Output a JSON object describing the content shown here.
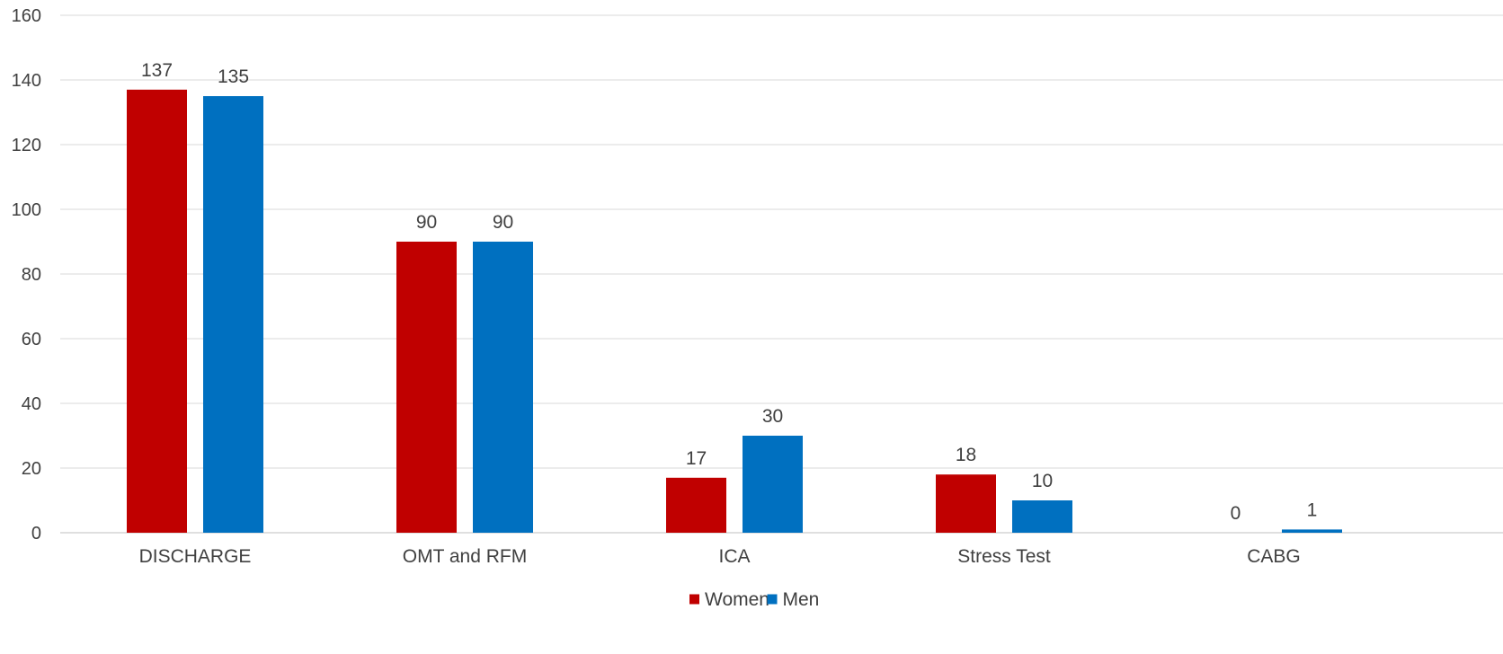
{
  "chart_data": {
    "type": "bar",
    "title": "",
    "xlabel": "",
    "ylabel": "",
    "categories": [
      "DISCHARGE",
      "OMT and RFM",
      "ICA",
      "Stress Test",
      "CABG"
    ],
    "series": [
      {
        "name": "Women",
        "color": "#C00000",
        "values": [
          137,
          90,
          17,
          18,
          0
        ]
      },
      {
        "name": "Men",
        "color": "#0070C0",
        "values": [
          135,
          90,
          30,
          10,
          1
        ]
      }
    ],
    "ylim": [
      0,
      160
    ],
    "yticks": [
      0,
      20,
      40,
      60,
      80,
      100,
      120,
      140,
      160
    ],
    "grid": true,
    "legend": "bottom-center",
    "gridline_color": "#D9D9D9",
    "axis_text_color": "#404040"
  }
}
